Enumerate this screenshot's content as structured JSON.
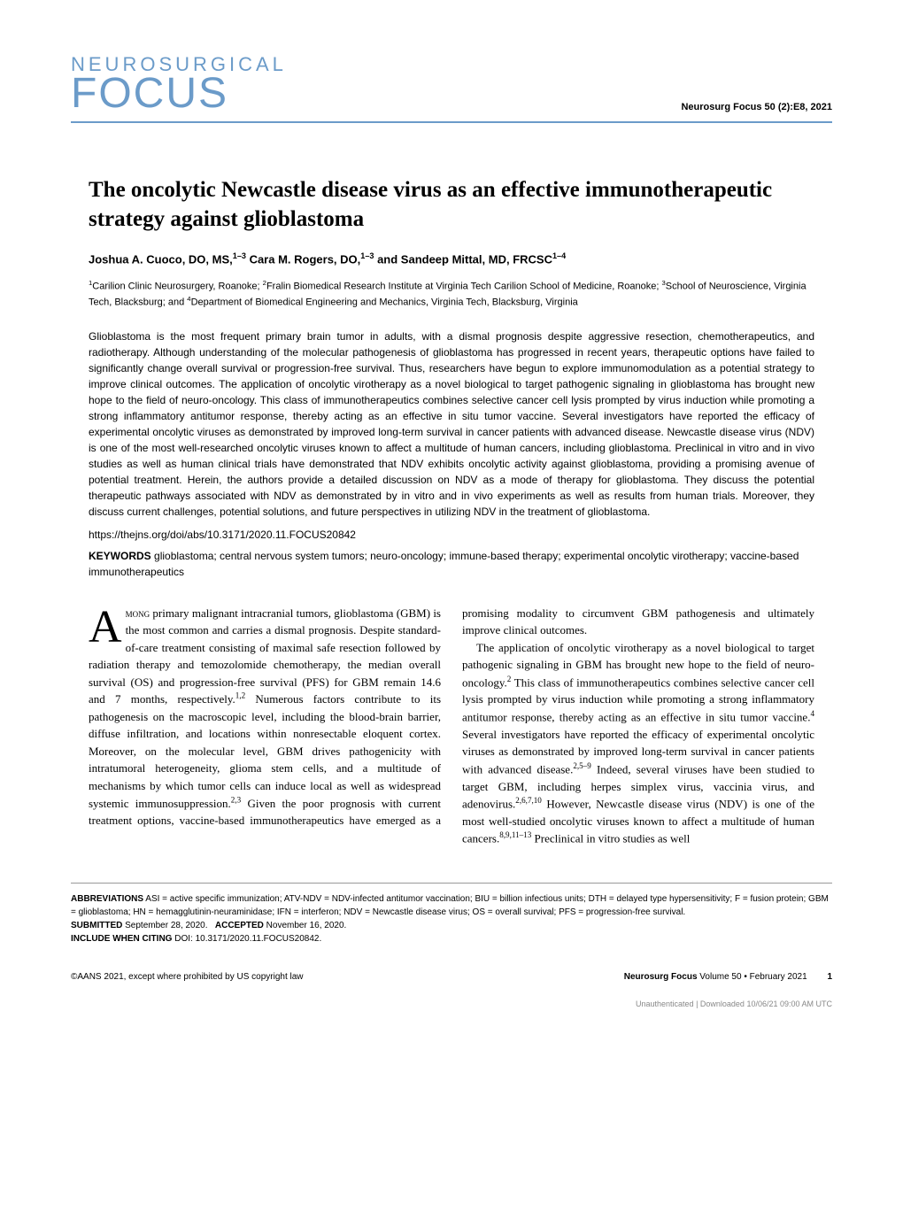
{
  "journal": {
    "brand_top": "NEUROSURGICAL",
    "brand_bottom": "FOCUS",
    "citation": "Neurosurg Focus 50 (2):E8, 2021",
    "brand_color": "#6b9bc9"
  },
  "article": {
    "title": "The oncolytic Newcastle disease virus as an effective immunotherapeutic strategy against glioblastoma",
    "authors_html": "Joshua A. Cuoco, DO, MS,<sup>1–3</sup> Cara M. Rogers, DO,<sup>1–3</sup> and Sandeep Mittal, MD, FRCSC<sup>1–4</sup>",
    "affiliations_html": "<sup>1</sup>Carilion Clinic Neurosurgery, Roanoke; <sup>2</sup>Fralin Biomedical Research Institute at Virginia Tech Carilion School of Medicine, Roanoke; <sup>3</sup>School of Neuroscience, Virginia Tech, Blacksburg; and <sup>4</sup>Department of Biomedical Engineering and Mechanics, Virginia Tech, Blacksburg, Virginia",
    "abstract": "Glioblastoma is the most frequent primary brain tumor in adults, with a dismal prognosis despite aggressive resection, chemotherapeutics, and radiotherapy. Although understanding of the molecular pathogenesis of glioblastoma has progressed in recent years, therapeutic options have failed to significantly change overall survival or progression-free survival. Thus, researchers have begun to explore immunomodulation as a potential strategy to improve clinical outcomes. The application of oncolytic virotherapy as a novel biological to target pathogenic signaling in glioblastoma has brought new hope to the field of neuro-oncology. This class of immunotherapeutics combines selective cancer cell lysis prompted by virus induction while promoting a strong inflammatory antitumor response, thereby acting as an effective in situ tumor vaccine. Several investigators have reported the efficacy of experimental oncolytic viruses as demonstrated by improved long-term survival in cancer patients with advanced disease. Newcastle disease virus (NDV) is one of the most well-researched oncolytic viruses known to affect a multitude of human cancers, including glioblastoma. Preclinical in vitro and in vivo studies as well as human clinical trials have demonstrated that NDV exhibits oncolytic activity against glioblastoma, providing a promising avenue of potential treatment. Herein, the authors provide a detailed discussion on NDV as a mode of therapy for glioblastoma. They discuss the potential therapeutic pathways associated with NDV as demonstrated by in vitro and in vivo experiments as well as results from human trials. Moreover, they discuss current challenges, potential solutions, and future perspectives in utilizing NDV in the treatment of glioblastoma.",
    "doi_url": "https://thejns.org/doi/abs/10.3171/2020.11.FOCUS20842",
    "keywords_label": "KEYWORDS",
    "keywords": "glioblastoma; central nervous system tumors; neuro-oncology; immune-based therapy; experimental oncolytic virotherapy; vaccine-based immunotherapeutics"
  },
  "body": {
    "dropcap": "A",
    "p1_html": "<span class=\"smallcaps\">mong</span> primary malignant intracranial tumors, glioblastoma (GBM) is the most common and carries a dismal prognosis. Despite standard-of-care treatment consisting of maximal safe resection followed by radiation therapy and temozolomide chemotherapy, the median overall survival (OS) and progression-free survival (PFS) for GBM remain 14.6 and 7 months, respectively.<sup>1,2</sup> Numerous factors contribute to its pathogenesis on the macroscopic level, including the blood-brain barrier, diffuse infiltration, and locations within nonresectable eloquent cortex. Moreover, on the molecular level, GBM drives pathogenicity with intratumoral heterogeneity, glioma stem cells, and a multitude of mechanisms by which tumor cells can induce local as well as widespread systemic immunosuppression.<sup>2,3</sup> Given the poor prognosis with current treatment options, vaccine-based immunotherapeutics have emerged as a promising modality to circumvent GBM pathogenesis and ultimately improve clinical outcomes.",
    "p2_html": "The application of oncolytic virotherapy as a novel biological to target pathogenic signaling in GBM has brought new hope to the field of neuro-oncology.<sup>2</sup> This class of immunotherapeutics combines selective cancer cell lysis prompted by virus induction while promoting a strong inflammatory antitumor response, thereby acting as an effective in situ tumor vaccine.<sup>4</sup> Several investigators have reported the efficacy of experimental oncolytic viruses as demonstrated by improved long-term survival in cancer patients with advanced disease.<sup>2,5–9</sup> Indeed, several viruses have been studied to target GBM, including herpes simplex virus, vaccinia virus, and adenovirus.<sup>2,6,7,10</sup> However, Newcastle disease virus (NDV) is one of the most well-studied oncolytic viruses known to affect a multitude of human cancers.<sup>8,9,11–13</sup> Preclinical in vitro studies as well"
  },
  "footer": {
    "abbreviations_label": "ABBREVIATIONS",
    "abbreviations": "ASI = active specific immunization; ATV-NDV = NDV-infected antitumor vaccination; BIU = billion infectious units; DTH = delayed type hypersensitivity; F = fusion protein; GBM = glioblastoma; HN = hemagglutinin-neuraminidase; IFN = interferon; NDV = Newcastle disease virus; OS = overall survival; PFS = progression-free survival.",
    "submitted_label": "SUBMITTED",
    "submitted_date": "September 28, 2020.",
    "accepted_label": "ACCEPTED",
    "accepted_date": "November 16, 2020.",
    "citing_label": "INCLUDE WHEN CITING",
    "citing_doi": "DOI: 10.3171/2020.11.FOCUS20842."
  },
  "page_footer": {
    "copyright": "©AANS 2021, except where prohibited by US copyright law",
    "journal_name": "Neurosurg Focus",
    "issue_info": "Volume 50 • February 2021",
    "page_number": "1"
  },
  "watermark": "Unauthenticated | Downloaded 10/06/21 09:00 AM UTC"
}
